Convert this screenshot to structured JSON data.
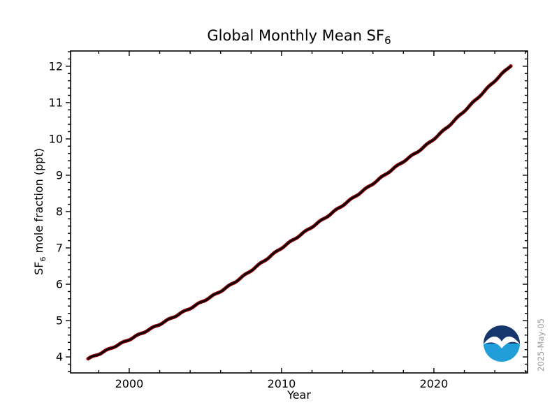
{
  "figure": {
    "background": "#ffffff"
  },
  "title": {
    "main": "Global Monthly Mean SF",
    "sub": "6"
  },
  "x_axis": {
    "label": "Year"
  },
  "y_axis": {
    "label_pre": "SF",
    "label_sub": "6",
    "label_post": " mole fraction (ppt)"
  },
  "stamp": "2025-May-05",
  "logo": {
    "text": "NOAA",
    "navy": "#16376c",
    "blue": "#219ed9",
    "white": "#ffffff"
  },
  "chart_data": {
    "type": "line",
    "title": "Global Monthly Mean SF6",
    "xlabel": "Year",
    "ylabel": "SF6 mole fraction (ppt)",
    "xlim": [
      1996.15,
      2026.15
    ],
    "ylim": [
      3.56,
      12.42
    ],
    "x_major_ticks": [
      2000,
      2010,
      2020
    ],
    "x_minor_step": 2,
    "y_major_ticks": [
      4,
      5,
      6,
      7,
      8,
      9,
      10,
      11,
      12
    ],
    "y_minor_step": 0.2,
    "grid": false,
    "legend": "none",
    "frame_color": "#000000",
    "line_color": "#000000",
    "marker_color": "#8b0000",
    "series": [
      {
        "name": "Global monthly mean SF6",
        "sampling": "monthly",
        "seasonal_amplitude": 0.015,
        "anchors_x": [
          1997.3,
          1998,
          1999,
          2000,
          2001,
          2002,
          2003,
          2004,
          2005,
          2006,
          2007,
          2008,
          2009,
          2010,
          2011,
          2012,
          2013,
          2014,
          2015,
          2016,
          2017,
          2018,
          2019,
          2020,
          2021,
          2022,
          2023,
          2024,
          2025.1
        ],
        "anchors_y": [
          3.95,
          4.08,
          4.28,
          4.48,
          4.69,
          4.9,
          5.12,
          5.34,
          5.57,
          5.81,
          6.08,
          6.38,
          6.69,
          7.0,
          7.29,
          7.58,
          7.87,
          8.17,
          8.47,
          8.77,
          9.08,
          9.38,
          9.67,
          10.0,
          10.37,
          10.77,
          11.18,
          11.6,
          12.04
        ]
      }
    ]
  }
}
